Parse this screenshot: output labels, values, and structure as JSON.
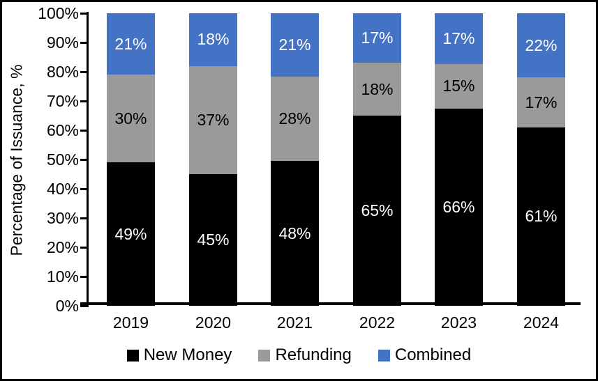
{
  "chart_data": {
    "type": "bar",
    "stacked": true,
    "stack_mode": "percent",
    "title": "",
    "ylabel": "Percentage of Issuance, %",
    "xlabel": "",
    "ylim": [
      0,
      100
    ],
    "y_ticks": [
      "0%",
      "10%",
      "20%",
      "30%",
      "40%",
      "50%",
      "60%",
      "70%",
      "80%",
      "90%",
      "100%"
    ],
    "categories": [
      "2019",
      "2020",
      "2021",
      "2022",
      "2023",
      "2024"
    ],
    "series": [
      {
        "name": "New Money",
        "color": "#000000",
        "label_color": "#ffffff",
        "values": [
          49,
          45,
          48,
          65,
          66,
          61
        ],
        "labels": [
          "49%",
          "45%",
          "48%",
          "65%",
          "66%",
          "61%"
        ]
      },
      {
        "name": "Refunding",
        "color": "#9a9a9a",
        "label_color": "#000000",
        "values": [
          30,
          37,
          28,
          18,
          15,
          17
        ],
        "labels": [
          "30%",
          "37%",
          "28%",
          "18%",
          "15%",
          "17%"
        ]
      },
      {
        "name": "Combined",
        "color": "#4472c4",
        "label_color": "#ffffff",
        "values": [
          21,
          18,
          21,
          17,
          17,
          22
        ],
        "labels": [
          "21%",
          "18%",
          "21%",
          "17%",
          "17%",
          "22%"
        ]
      }
    ],
    "legend_position": "bottom",
    "grid": false,
    "axis_color": "#000000",
    "background_color": "#ffffff"
  }
}
